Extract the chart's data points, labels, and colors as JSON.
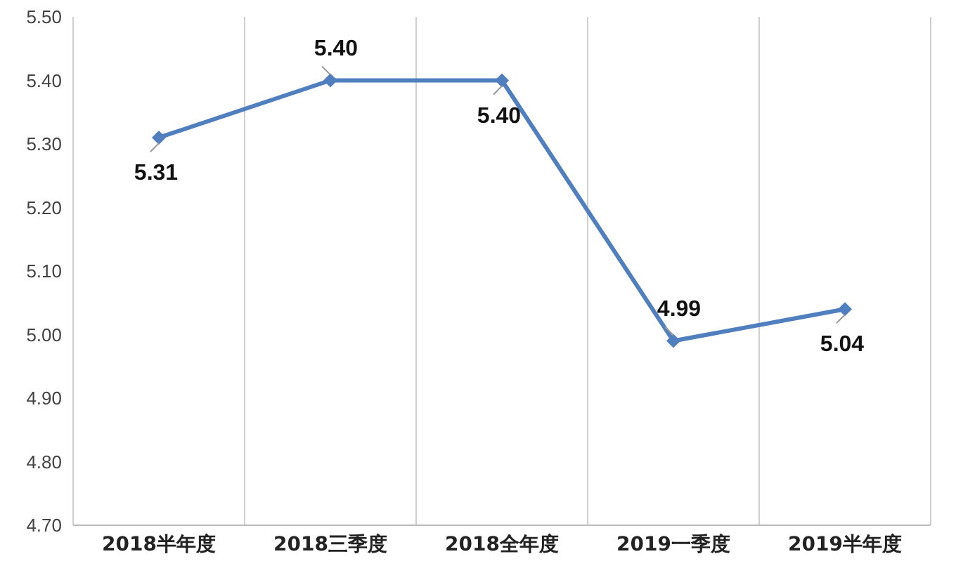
{
  "chart_data": {
    "type": "line",
    "categories": [
      "2018半年度",
      "2018三季度",
      "2018全年度",
      "2019一季度",
      "2019半年度"
    ],
    "series": [
      {
        "color": "#4f7fbf",
        "values": [
          5.31,
          5.4,
          5.4,
          4.99,
          5.04
        ]
      }
    ],
    "value_labels": [
      "5.31",
      "5.40",
      "5.40",
      "4.99",
      "5.04"
    ],
    "ylim": [
      4.7,
      5.5
    ],
    "yticks": [
      {
        "value": 4.7,
        "label": "4.70"
      },
      {
        "value": 4.8,
        "label": "4.80"
      },
      {
        "value": 4.9,
        "label": "4.90"
      },
      {
        "value": 5.0,
        "label": "5.00"
      },
      {
        "value": 5.1,
        "label": "5.10"
      },
      {
        "value": 5.2,
        "label": "5.20"
      },
      {
        "value": 5.3,
        "label": "5.30"
      },
      {
        "value": 5.4,
        "label": "5.40"
      },
      {
        "value": 5.5,
        "label": "5.50"
      }
    ],
    "grid": "x",
    "marker": "diamond",
    "line_style": "solid"
  }
}
